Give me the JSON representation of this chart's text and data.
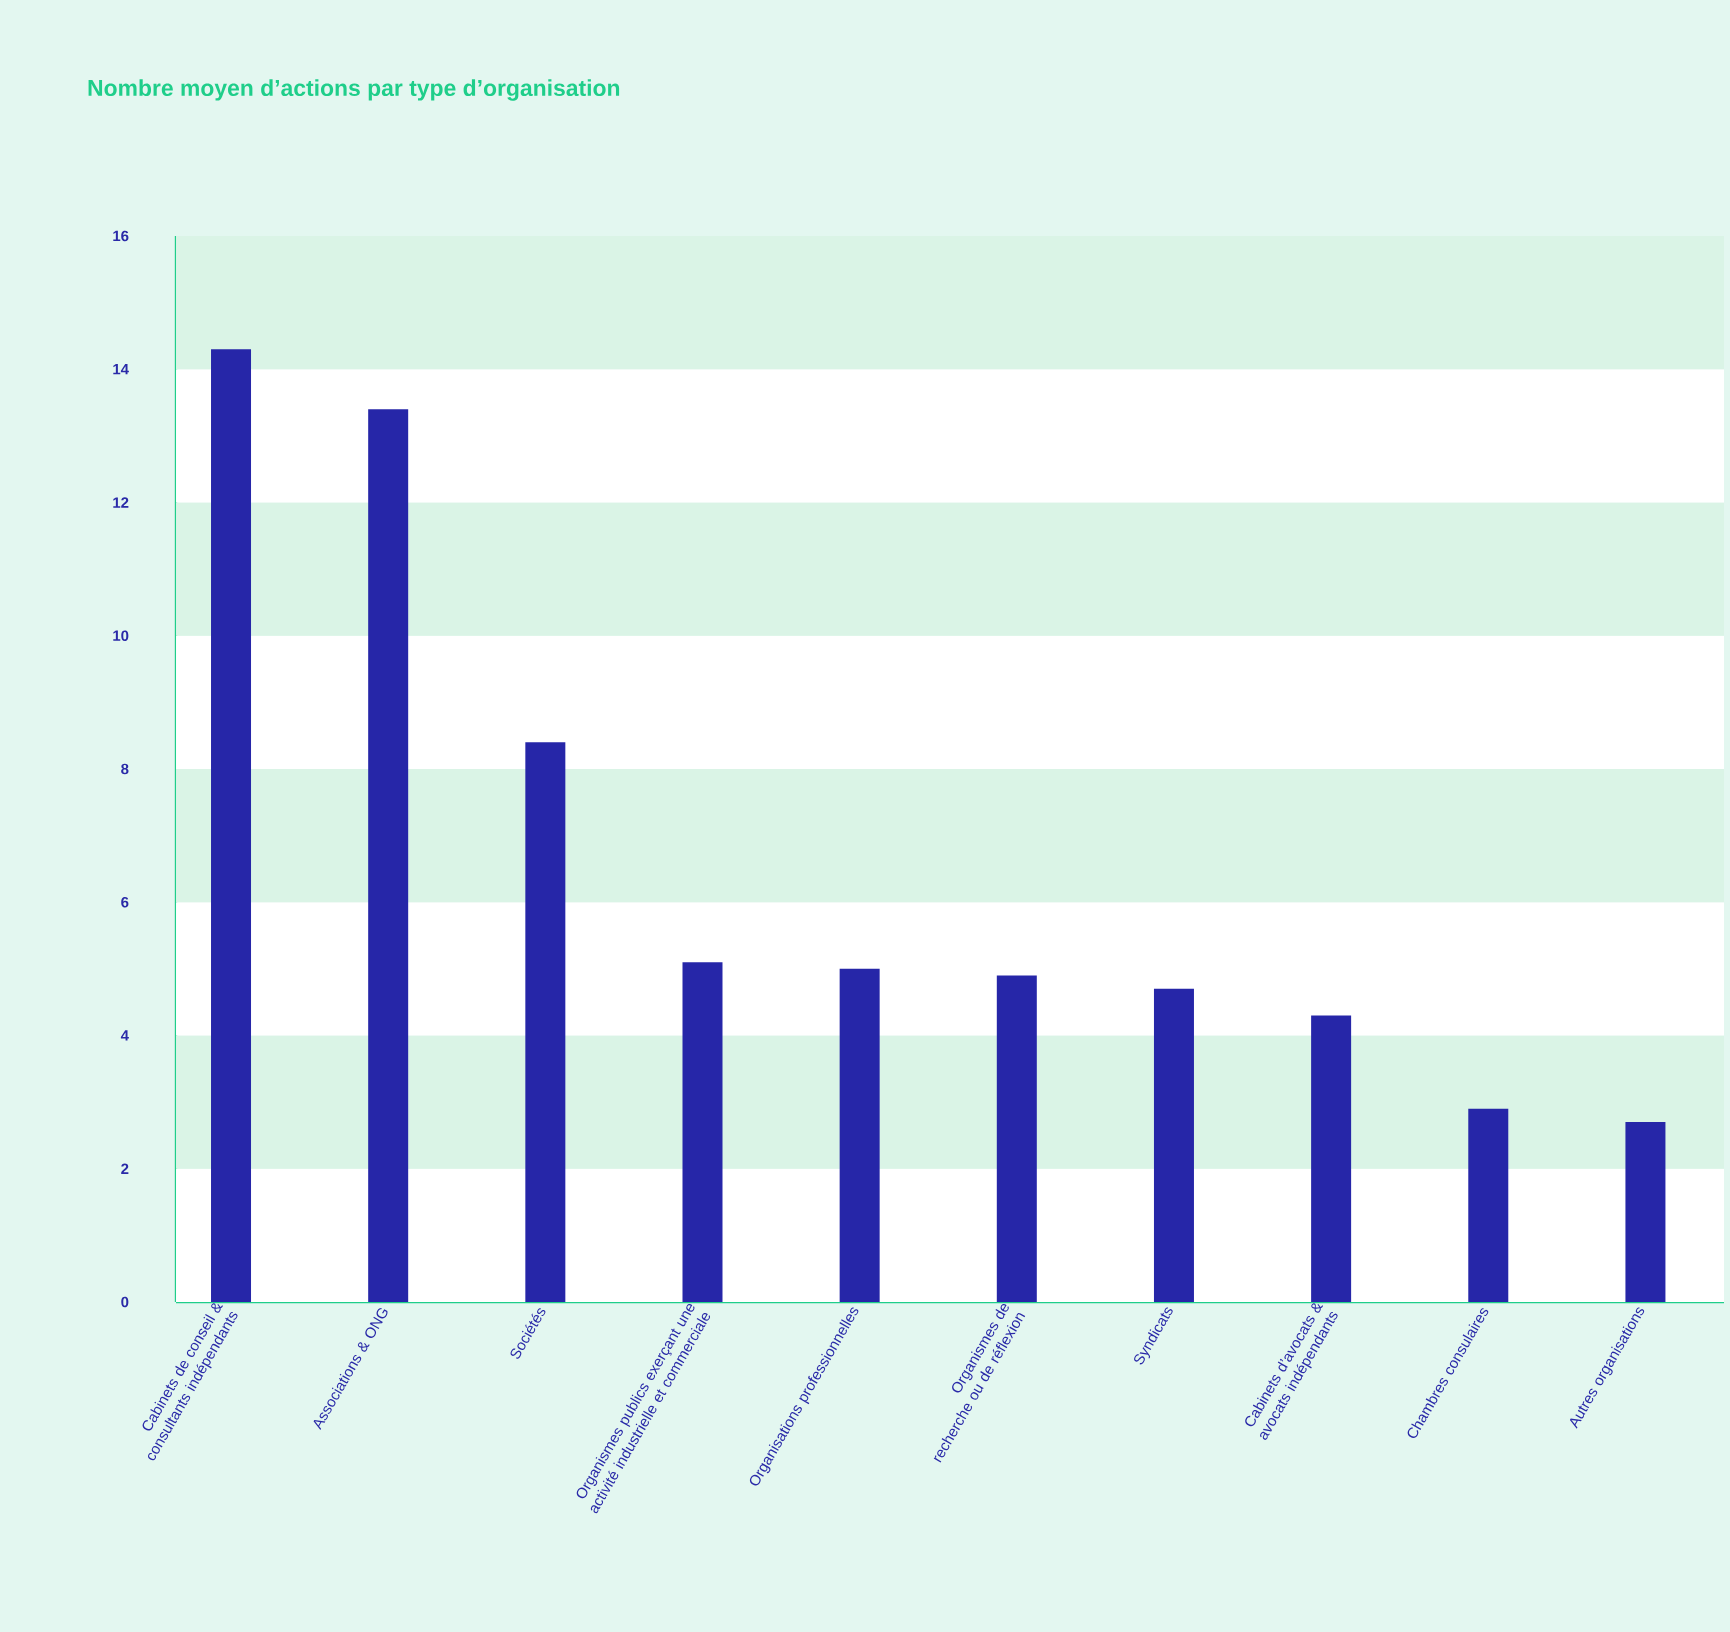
{
  "chart_data": {
    "type": "bar",
    "title": "Nombre moyen d’actions par type d’organisation",
    "categories": [
      "Cabinets de conseil & consultants indépendants",
      "Associations & ONG",
      "Sociétés",
      "Organismes publics exerçant une activité industrielle et commerciale",
      "Organisations professionnelles",
      "Organismes de recherche ou de réflexion",
      "Syndicats",
      "Cabinets d’avocats & avocats indépendants",
      "Chambres consulaires",
      "Autres organisations"
    ],
    "values": [
      14.3,
      13.4,
      8.4,
      5.1,
      5.0,
      4.9,
      4.7,
      4.3,
      2.9,
      2.7
    ],
    "color": "#2626a8",
    "ylim": [
      0,
      16
    ],
    "yticks": [
      0,
      2,
      4,
      6,
      8,
      10,
      12,
      14,
      16
    ],
    "bands": [
      {
        "axis": "y",
        "from": 0,
        "to": 2,
        "color": "#ffffff"
      },
      {
        "axis": "y",
        "from": 2,
        "to": 4,
        "color": "#daf4e6"
      },
      {
        "axis": "y",
        "from": 4,
        "to": 6,
        "color": "#ffffff"
      },
      {
        "axis": "y",
        "from": 6,
        "to": 8,
        "color": "#daf4e6"
      },
      {
        "axis": "y",
        "from": 8,
        "to": 10,
        "color": "#ffffff"
      },
      {
        "axis": "y",
        "from": 10,
        "to": 12,
        "color": "#daf4e6"
      },
      {
        "axis": "y",
        "from": 12,
        "to": 14,
        "color": "#ffffff"
      },
      {
        "axis": "y",
        "from": 14,
        "to": 16,
        "color": "#daf4e6"
      }
    ]
  }
}
